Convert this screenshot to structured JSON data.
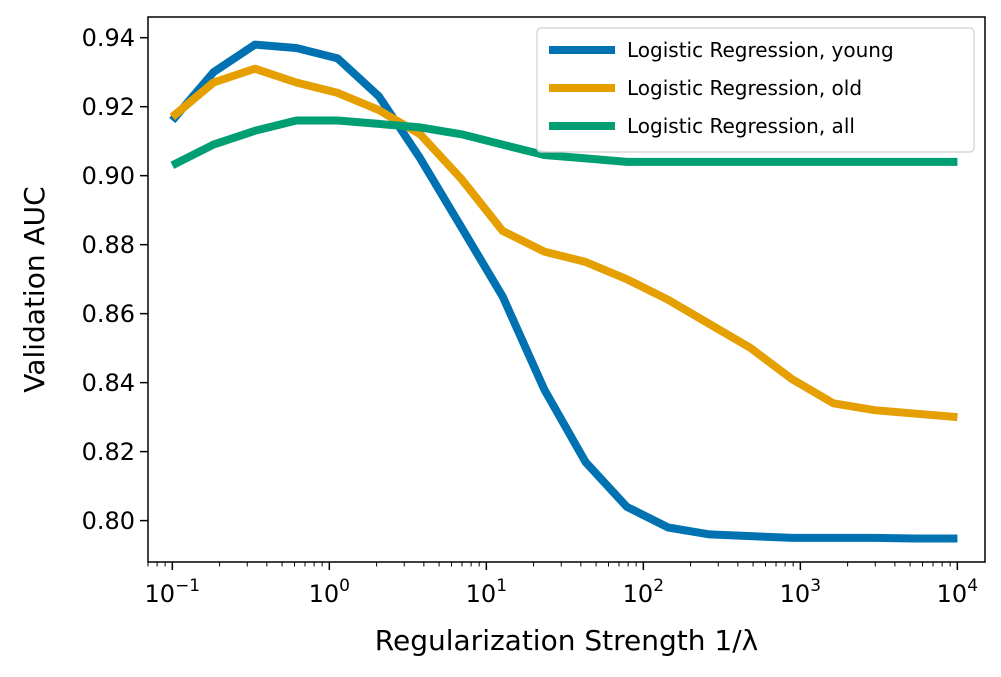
{
  "chart_data": {
    "type": "line",
    "xscale": "log",
    "xlabel": "Regularization Strength 1/λ",
    "ylabel": "Validation AUC",
    "xlim": [
      0.07,
      15000
    ],
    "ylim": [
      0.788,
      0.946
    ],
    "grid": false,
    "legend_position": "top-right",
    "x_ticks": [
      {
        "value": 0.1,
        "base": "10",
        "exp": "−1"
      },
      {
        "value": 1,
        "base": "10",
        "exp": "0"
      },
      {
        "value": 10,
        "base": "10",
        "exp": "1"
      },
      {
        "value": 100,
        "base": "10",
        "exp": "2"
      },
      {
        "value": 1000,
        "base": "10",
        "exp": "3"
      },
      {
        "value": 10000,
        "base": "10",
        "exp": "4"
      }
    ],
    "y_ticks": [
      {
        "value": 0.8,
        "label": "0.80"
      },
      {
        "value": 0.82,
        "label": "0.82"
      },
      {
        "value": 0.84,
        "label": "0.84"
      },
      {
        "value": 0.86,
        "label": "0.86"
      },
      {
        "value": 0.88,
        "label": "0.88"
      },
      {
        "value": 0.9,
        "label": "0.90"
      },
      {
        "value": 0.92,
        "label": "0.92"
      },
      {
        "value": 0.94,
        "label": "0.94"
      }
    ],
    "x": [
      0.1,
      0.183,
      0.336,
      0.616,
      1.13,
      2.07,
      3.79,
      6.95,
      12.7,
      23.4,
      42.8,
      78.5,
      144,
      264,
      483,
      886,
      1624,
      2976,
      5456,
      10000
    ],
    "series": [
      {
        "name": "Logistic Regression, young",
        "color": "#0072B2",
        "values": [
          0.916,
          0.93,
          0.938,
          0.937,
          0.934,
          0.923,
          0.905,
          0.885,
          0.865,
          0.838,
          0.817,
          0.804,
          0.798,
          0.796,
          0.7955,
          0.795,
          0.795,
          0.795,
          0.7948,
          0.7948
        ]
      },
      {
        "name": "Logistic Regression, old",
        "color": "#E69F00",
        "values": [
          0.917,
          0.927,
          0.931,
          0.927,
          0.924,
          0.919,
          0.912,
          0.899,
          0.884,
          0.878,
          0.875,
          0.87,
          0.864,
          0.857,
          0.85,
          0.841,
          0.834,
          0.832,
          0.831,
          0.83
        ]
      },
      {
        "name": "Logistic Regression, all",
        "color": "#009E73",
        "values": [
          0.903,
          0.909,
          0.913,
          0.916,
          0.916,
          0.915,
          0.914,
          0.912,
          0.909,
          0.906,
          0.905,
          0.904,
          0.904,
          0.904,
          0.904,
          0.904,
          0.904,
          0.904,
          0.904,
          0.904
        ]
      }
    ]
  }
}
